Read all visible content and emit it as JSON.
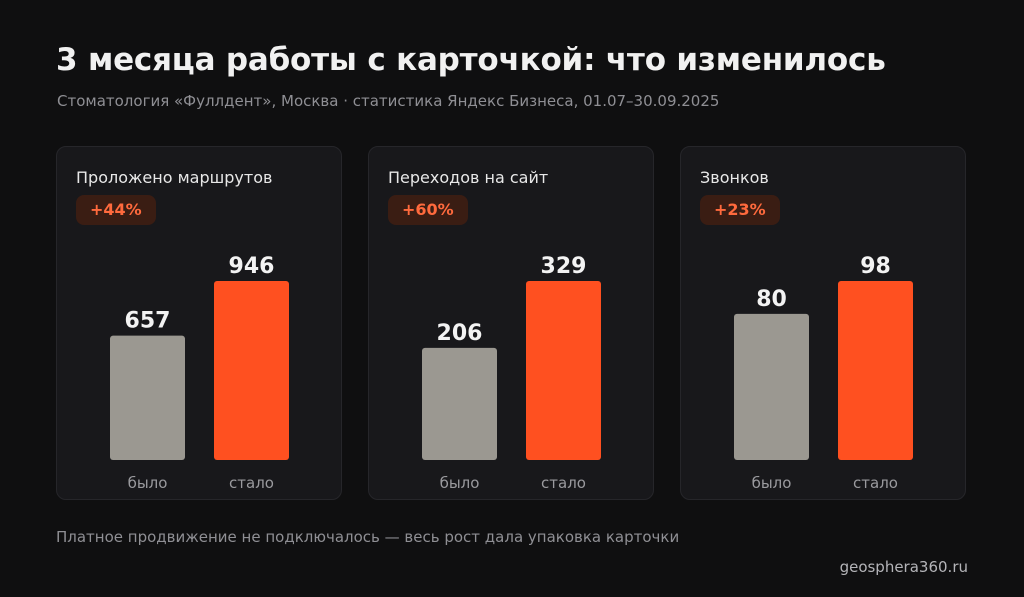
{
  "header": {
    "title": "3 месяца работы с карточкой: что изменилось",
    "subtitle": "Стоматология «Фуллдент», Москва · статистика Яндекс Бизнеса, 01.07–30.09.2025"
  },
  "footer": {
    "note": "Платное продвижение не подключалось — весь рост дала упаковка карточки",
    "site": "geosphera360.ru"
  },
  "colors": {
    "before": "#9b9891",
    "after": "#ff5020",
    "badge_text": "#ff6a3d",
    "badge_bg": "#3a1d13"
  },
  "chart_data": [
    {
      "type": "bar",
      "title": "Проложено маршрутов",
      "change": "+44%",
      "categories": [
        "было",
        "стало"
      ],
      "values": [
        657,
        946
      ],
      "ylim": [
        0,
        946
      ]
    },
    {
      "type": "bar",
      "title": "Переходов на сайт",
      "change": "+60%",
      "categories": [
        "было",
        "стало"
      ],
      "values": [
        206,
        329
      ],
      "ylim": [
        0,
        329
      ]
    },
    {
      "type": "bar",
      "title": "Звонков",
      "change": "+23%",
      "categories": [
        "было",
        "стало"
      ],
      "values": [
        80,
        98
      ],
      "ylim": [
        0,
        98
      ]
    }
  ]
}
